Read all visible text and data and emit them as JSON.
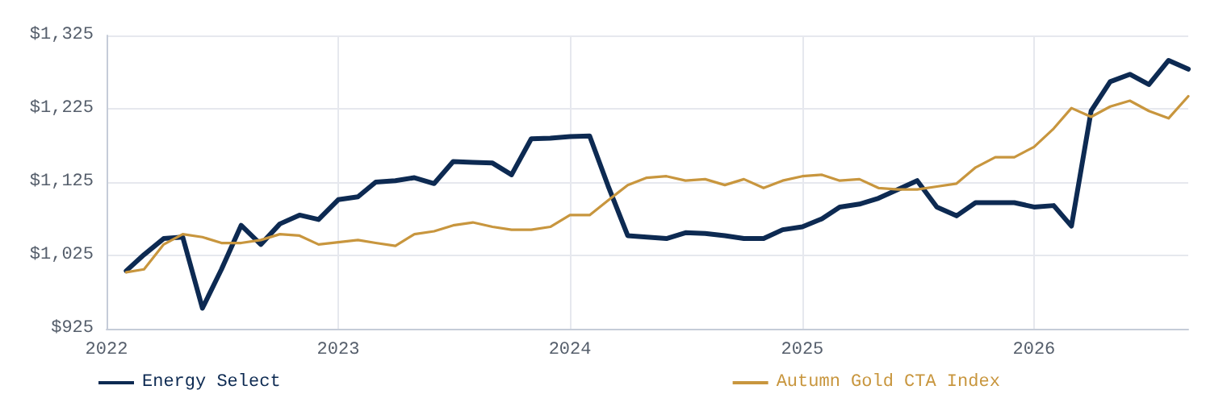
{
  "chart_data": {
    "type": "line",
    "x": [
      "2022-02",
      "2022-03",
      "2022-04",
      "2022-05",
      "2022-06",
      "2022-07",
      "2022-08",
      "2022-09",
      "2022-10",
      "2022-11",
      "2022-12",
      "2023-01",
      "2023-02",
      "2023-03",
      "2023-04",
      "2023-05",
      "2023-06",
      "2023-07",
      "2023-08",
      "2023-09",
      "2023-10",
      "2023-11",
      "2023-12",
      "2024-01",
      "2024-02",
      "2024-03",
      "2024-04",
      "2024-05",
      "2024-06",
      "2024-07",
      "2024-08",
      "2024-09",
      "2024-10",
      "2024-11",
      "2024-12",
      "2025-01",
      "2025-02",
      "2025-03",
      "2025-04",
      "2025-05",
      "2025-06",
      "2025-07",
      "2025-08",
      "2025-09",
      "2025-10",
      "2025-11",
      "2025-12",
      "2026-01",
      "2026-02",
      "2026-03",
      "2026-04",
      "2026-05",
      "2026-06",
      "2026-07",
      "2026-08",
      "2026-09"
    ],
    "series": [
      {
        "name": "Energy Select",
        "color": "#0d2a52",
        "values": [
          1004,
          1026,
          1048,
          1050,
          953,
          1006,
          1066,
          1040,
          1068,
          1080,
          1074,
          1101,
          1105,
          1125,
          1127,
          1131,
          1123,
          1153,
          1152,
          1151,
          1135,
          1184,
          1185,
          1187,
          1188,
          1120,
          1052,
          1050,
          1048,
          1056,
          1055,
          1052,
          1048,
          1048,
          1060,
          1064,
          1075,
          1091,
          1095,
          1103,
          1115,
          1127,
          1091,
          1079,
          1097,
          1097,
          1097,
          1091,
          1093,
          1065,
          1222,
          1262,
          1272,
          1258,
          1291,
          1279
        ]
      },
      {
        "name": "Autumn Gold CTA Index",
        "color": "#c8963e",
        "values": [
          1002,
          1006,
          1040,
          1054,
          1050,
          1042,
          1042,
          1046,
          1054,
          1052,
          1040,
          1043,
          1046,
          1042,
          1038,
          1054,
          1058,
          1066,
          1070,
          1064,
          1060,
          1060,
          1064,
          1080,
          1080,
          1100,
          1121,
          1131,
          1133,
          1127,
          1129,
          1121,
          1129,
          1117,
          1127,
          1133,
          1135,
          1127,
          1129,
          1117,
          1115,
          1115,
          1119,
          1123,
          1145,
          1159,
          1159,
          1173,
          1198,
          1226,
          1214,
          1228,
          1236,
          1222,
          1212,
          1242
        ]
      }
    ],
    "xlim": [
      "2022-01",
      "2026-09"
    ],
    "xticks": [
      "2022",
      "2023",
      "2024",
      "2025",
      "2026"
    ],
    "ylim": [
      925,
      1325
    ],
    "yticks": [
      {
        "value": 925,
        "label": "$925"
      },
      {
        "value": 1025,
        "label": "$1,025"
      },
      {
        "value": 1125,
        "label": "$1,125"
      },
      {
        "value": 1225,
        "label": "$1,225"
      },
      {
        "value": 1325,
        "label": "$1,325"
      }
    ],
    "grid": true,
    "legend": "bottom",
    "marker": "none",
    "line_style": "solid"
  }
}
